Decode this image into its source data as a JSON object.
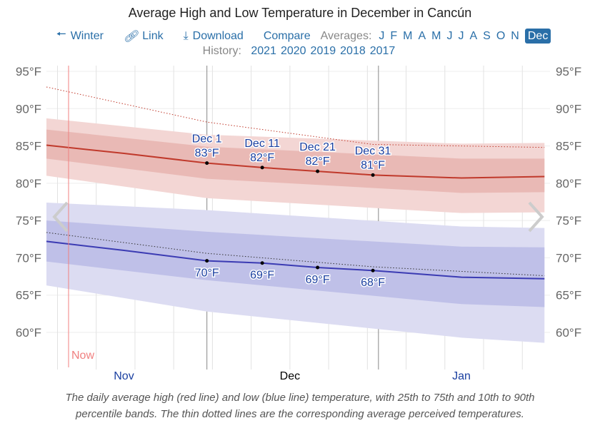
{
  "title": "Average High and Low Temperature in December in Cancún",
  "nav": {
    "winter": "Winter",
    "link": "Link",
    "download": "Download",
    "compare": "Compare",
    "averages_label": "Averages:",
    "months": [
      "J",
      "F",
      "M",
      "A",
      "M",
      "J",
      "J",
      "A",
      "S",
      "O",
      "N",
      "Dec"
    ],
    "selected_month": "Dec"
  },
  "history": {
    "label": "History:",
    "years": [
      "2021",
      "2020",
      "2019",
      "2018",
      "2017"
    ]
  },
  "caption": [
    "The daily average high (red line) and low (blue line) temperature, with 25th to 75th and 10th to 90th",
    "percentile bands. The thin dotted lines are the corresponding average perceived temperatures."
  ],
  "colors": {
    "high": "#c0392b",
    "low": "#3b3bb3",
    "accent": "#2a6fa8",
    "now": "#f08080"
  },
  "chart_data": {
    "type": "area",
    "title": "Average High and Low Temperature in December in Cancún",
    "ylim": [
      57,
      96
    ],
    "y_ticks": [
      "60°F",
      "65°F",
      "70°F",
      "75°F",
      "80°F",
      "85°F",
      "90°F",
      "95°F"
    ],
    "y_tick_values": [
      60,
      65,
      70,
      75,
      80,
      85,
      90,
      95
    ],
    "x_range": [
      "Nov 2",
      "Jan 31"
    ],
    "x_month_labels": [
      {
        "label": "Nov",
        "at": "Nov 16"
      },
      {
        "label": "Dec",
        "at": "Dec 16"
      },
      {
        "label": "Jan",
        "at": "Jan 16"
      }
    ],
    "now": {
      "label": "Now",
      "date": "Nov 6"
    },
    "grid": true,
    "series": {
      "high": {
        "x": [
          "Nov 2",
          "Nov 16",
          "Dec 1",
          "Dec 11",
          "Dec 21",
          "Dec 31",
          "Jan 16",
          "Jan 31"
        ],
        "y": [
          85.1,
          84.0,
          82.7,
          82.1,
          81.6,
          81.1,
          80.7,
          80.9
        ]
      },
      "high_p25_p75": {
        "x": [
          "Nov 2",
          "Dec 1",
          "Jan 16",
          "Jan 31"
        ],
        "lo": [
          83.3,
          80.6,
          78.7,
          78.8
        ],
        "hi": [
          87.2,
          84.9,
          83.3,
          83.3
        ]
      },
      "high_p10_p90": {
        "x": [
          "Nov 2",
          "Dec 1",
          "Jan 16",
          "Jan 31"
        ],
        "lo": [
          81.0,
          78.0,
          76.0,
          76.1
        ],
        "hi": [
          88.7,
          86.5,
          85.3,
          85.4
        ]
      },
      "high_perceived": {
        "x": [
          "Nov 2",
          "Dec 1",
          "Dec 31",
          "Jan 31"
        ],
        "y": [
          92.9,
          88.2,
          85.2,
          84.8
        ]
      },
      "low": {
        "x": [
          "Nov 2",
          "Nov 16",
          "Dec 1",
          "Dec 11",
          "Dec 21",
          "Dec 31",
          "Jan 16",
          "Jan 31"
        ],
        "y": [
          72.2,
          71.0,
          69.6,
          69.3,
          68.7,
          68.3,
          67.4,
          67.2
        ]
      },
      "low_p25_p75": {
        "x": [
          "Nov 2",
          "Dec 1",
          "Jan 16",
          "Jan 31"
        ],
        "lo": [
          69.5,
          67.0,
          63.8,
          63.4
        ],
        "hi": [
          75.0,
          73.5,
          71.5,
          71.4
        ]
      },
      "low_p10_p90": {
        "x": [
          "Nov 2",
          "Dec 1",
          "Jan 16",
          "Jan 31"
        ],
        "lo": [
          66.3,
          62.8,
          59.3,
          58.6
        ],
        "hi": [
          77.4,
          76.4,
          74.2,
          74.0
        ]
      },
      "low_perceived": {
        "x": [
          "Nov 2",
          "Dec 1",
          "Dec 31",
          "Jan 31"
        ],
        "y": [
          73.4,
          70.6,
          68.8,
          67.6
        ]
      }
    },
    "annotations": [
      {
        "date": "Dec 1",
        "label": "Dec 1",
        "high": 83,
        "high_label": "83°F",
        "high_y": 82.7,
        "low_label": "70°F",
        "low_y": 69.6
      },
      {
        "date": "Dec 11",
        "label": "Dec 11",
        "high_label": "82°F",
        "high_y": 82.1,
        "low_label": "69°F",
        "low_y": 69.3
      },
      {
        "date": "Dec 21",
        "label": "Dec 21",
        "high_label": "82°F",
        "high_y": 81.6,
        "low_label": "69°F",
        "low_y": 68.7
      },
      {
        "date": "Dec 31",
        "label": "Dec 31",
        "high_label": "81°F",
        "high_y": 81.1,
        "low_label": "68°F",
        "low_y": 68.3
      }
    ]
  }
}
